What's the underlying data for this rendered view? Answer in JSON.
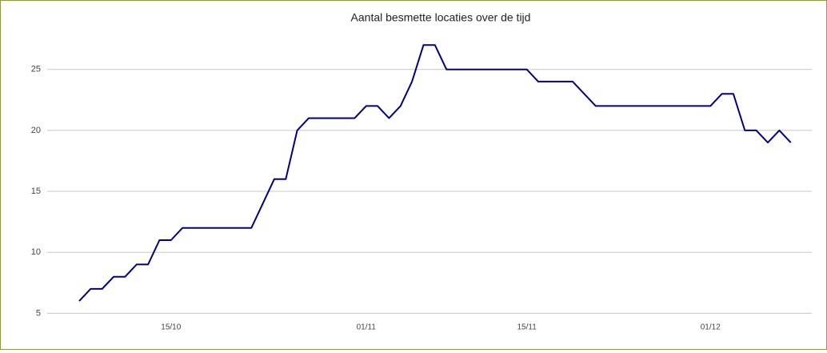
{
  "chart_data": {
    "type": "line",
    "title": "Aantal besmette locaties over de tijd",
    "categories": [
      null,
      null,
      null,
      null,
      null,
      null,
      null,
      null,
      "15/10",
      null,
      null,
      null,
      null,
      null,
      null,
      null,
      null,
      null,
      null,
      null,
      null,
      null,
      null,
      null,
      null,
      "01/11",
      null,
      null,
      null,
      null,
      null,
      null,
      null,
      null,
      null,
      null,
      null,
      null,
      null,
      "15/11",
      null,
      null,
      null,
      null,
      null,
      null,
      null,
      null,
      null,
      null,
      null,
      null,
      null,
      null,
      null,
      "01/12",
      null,
      null,
      null,
      null,
      null,
      null,
      null
    ],
    "series": [
      {
        "name": "Aantal besmette locaties",
        "color": "#000080",
        "values": [
          6,
          7,
          7,
          8,
          8,
          9,
          9,
          11,
          11,
          12,
          12,
          12,
          12,
          12,
          12,
          12,
          14,
          16,
          16,
          20,
          21,
          21,
          21,
          21,
          21,
          22,
          22,
          21,
          22,
          24,
          27,
          27,
          25,
          25,
          25,
          25,
          25,
          25,
          25,
          25,
          24,
          24,
          24,
          24,
          23,
          22,
          22,
          22,
          22,
          22,
          22,
          22,
          22,
          22,
          22,
          22,
          23,
          23,
          20,
          20,
          19,
          20,
          19
        ]
      }
    ],
    "ylim": [
      4.5,
      28
    ],
    "yticks": [
      5,
      10,
      15,
      20,
      25
    ],
    "grid": true
  }
}
